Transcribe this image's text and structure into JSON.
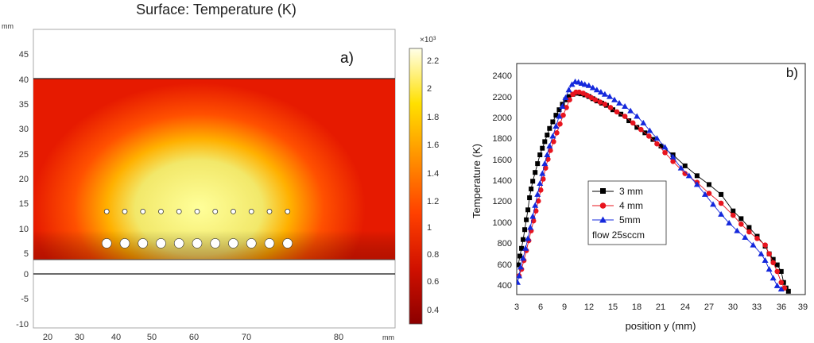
{
  "panel_a": {
    "title": "Surface: Temperature (K)",
    "panel_label": "a)",
    "axis_unit_y": "mm",
    "axis_unit_x": "mm",
    "x_ticks": [
      "20",
      "30",
      "40",
      "50",
      "60",
      "70",
      "80"
    ],
    "y_ticks": [
      "45",
      "40",
      "35",
      "30",
      "25",
      "20",
      "15",
      "10",
      "5",
      "0",
      "-5",
      "-10"
    ],
    "colorbar_exponent": "×10³",
    "colorbar_ticks": [
      "2.2",
      "2",
      "1.8",
      "1.6",
      "1.4",
      "1.2",
      "1",
      "0.8",
      "0.6",
      "0.4"
    ],
    "colors": {
      "hot": "#ffff9a",
      "mid": "#ff9a00",
      "warm": "#ff2a00",
      "cold": "#a00000"
    }
  },
  "panel_b": {
    "panel_label": "b)",
    "xlabel": "position y (mm)",
    "ylabel": "Temperature (K)",
    "x_ticks": [
      "3",
      "6",
      "9",
      "12",
      "15",
      "18",
      "21",
      "24",
      "27",
      "30",
      "33",
      "36",
      "39"
    ],
    "y_ticks": [
      "2400",
      "2200",
      "2000",
      "1800",
      "1600",
      "1400",
      "1200",
      "1000",
      "800",
      "600",
      "400"
    ],
    "legend": {
      "series": [
        "3 mm",
        "4 mm",
        "5mm"
      ],
      "note": "flow 25sccm"
    }
  },
  "chart_data": [
    {
      "type": "heatmap",
      "title": "Surface: Temperature (K)",
      "xlabel": "mm",
      "ylabel": "mm",
      "xlim": [
        17,
        91
      ],
      "ylim": [
        -11,
        49
      ],
      "colorbar": {
        "label": "×10³",
        "range": [
          0.3,
          2.3
        ]
      },
      "domain": {
        "x": [
          17,
          91
        ],
        "y": [
          3,
          40
        ]
      },
      "holes_large_y_mm": 6,
      "holes_small_y_mm": 12.4,
      "hole_x_mm": [
        32,
        35.7,
        39.4,
        43.1,
        46.8,
        50.5,
        54.2,
        57.9,
        61.6,
        65.3,
        69
      ]
    },
    {
      "type": "scatter",
      "xlabel": "position y (mm)",
      "ylabel": "Temperature (K)",
      "xlim": [
        3,
        39
      ],
      "ylim": [
        350,
        2450
      ],
      "series": [
        {
          "name": "3 mm",
          "color": "#000000",
          "marker": "square",
          "x": [
            3.2,
            3.4,
            3.6,
            3.8,
            4.0,
            4.2,
            4.4,
            4.6,
            4.8,
            5.0,
            5.3,
            5.6,
            5.9,
            6.2,
            6.5,
            6.8,
            7.1,
            7.5,
            7.9,
            8.3,
            8.7,
            9.1,
            9.5,
            10.0,
            10.5,
            11.0,
            11.5,
            12.0,
            12.5,
            13.0,
            13.6,
            14.2,
            15.0,
            16.0,
            17.0,
            18.0,
            19.0,
            20.0,
            21.0,
            22.5,
            24.0,
            25.5,
            27.0,
            28.5,
            30.0,
            31.0,
            32.0,
            33.0,
            34.0,
            34.5,
            35.0,
            35.5,
            36.0,
            36.3,
            36.6,
            36.9
          ],
          "y": [
            620,
            700,
            770,
            850,
            940,
            1030,
            1120,
            1230,
            1310,
            1380,
            1460,
            1540,
            1620,
            1680,
            1740,
            1800,
            1860,
            1920,
            1980,
            2030,
            2080,
            2120,
            2150,
            2170,
            2180,
            2175,
            2165,
            2150,
            2130,
            2110,
            2090,
            2070,
            2030,
            1990,
            1930,
            1870,
            1820,
            1760,
            1700,
            1620,
            1520,
            1430,
            1350,
            1260,
            1110,
            1040,
            960,
            880,
            790,
            720,
            670,
            620,
            560,
            460,
            410,
            380
          ]
        },
        {
          "name": "4 mm",
          "color": "#e8141e",
          "marker": "circle",
          "x": [
            3.3,
            3.6,
            3.9,
            4.2,
            4.5,
            4.8,
            5.1,
            5.4,
            5.7,
            6.0,
            6.3,
            6.6,
            6.9,
            7.2,
            7.6,
            8.0,
            8.4,
            8.8,
            9.2,
            9.6,
            10.0,
            10.4,
            10.8,
            11.3,
            11.8,
            12.3,
            12.8,
            13.4,
            14.0,
            14.7,
            15.5,
            16.5,
            17.5,
            18.5,
            19.5,
            20.5,
            21.5,
            22.5,
            24.0,
            25.5,
            27.0,
            28.5,
            30.0,
            31.0,
            32.0,
            33.0,
            34.0,
            34.5,
            35.0,
            35.5,
            36.0,
            36.4
          ],
          "y": [
            520,
            580,
            660,
            750,
            840,
            930,
            1020,
            1110,
            1200,
            1300,
            1400,
            1500,
            1580,
            1660,
            1740,
            1820,
            1900,
            1980,
            2050,
            2120,
            2170,
            2190,
            2190,
            2180,
            2160,
            2140,
            2120,
            2100,
            2080,
            2050,
            2010,
            1970,
            1910,
            1850,
            1790,
            1720,
            1640,
            1560,
            1450,
            1370,
            1270,
            1180,
            1070,
            990,
            920,
            860,
            800,
            720,
            640,
            560,
            460,
            410
          ]
        },
        {
          "name": "5mm",
          "color": "#1428dc",
          "marker": "triangle",
          "x": [
            3.1,
            3.3,
            3.5,
            3.8,
            4.1,
            4.4,
            4.7,
            5.0,
            5.3,
            5.6,
            5.9,
            6.2,
            6.5,
            6.8,
            7.1,
            7.5,
            7.9,
            8.3,
            8.7,
            9.1,
            9.5,
            9.9,
            10.3,
            10.7,
            11.1,
            11.5,
            12.0,
            12.5,
            13.0,
            13.5,
            14.0,
            14.6,
            15.2,
            15.8,
            16.5,
            17.2,
            18.0,
            18.8,
            19.6,
            20.5,
            21.5,
            22.5,
            23.5,
            24.5,
            25.5,
            26.5,
            27.5,
            28.5,
            29.5,
            30.5,
            31.5,
            32.5,
            33.5,
            34.0,
            34.5,
            35.0,
            35.5,
            36.0
          ],
          "y": [
            460,
            520,
            600,
            680,
            770,
            860,
            960,
            1060,
            1160,
            1260,
            1360,
            1450,
            1540,
            1620,
            1700,
            1790,
            1880,
            1970,
            2060,
            2140,
            2210,
            2260,
            2285,
            2280,
            2270,
            2260,
            2250,
            2230,
            2210,
            2190,
            2170,
            2150,
            2120,
            2090,
            2060,
            2020,
            1970,
            1910,
            1840,
            1770,
            1690,
            1600,
            1500,
            1430,
            1350,
            1260,
            1170,
            1080,
            1000,
            930,
            870,
            800,
            720,
            660,
            580,
            500,
            430,
            400
          ]
        }
      ]
    }
  ]
}
